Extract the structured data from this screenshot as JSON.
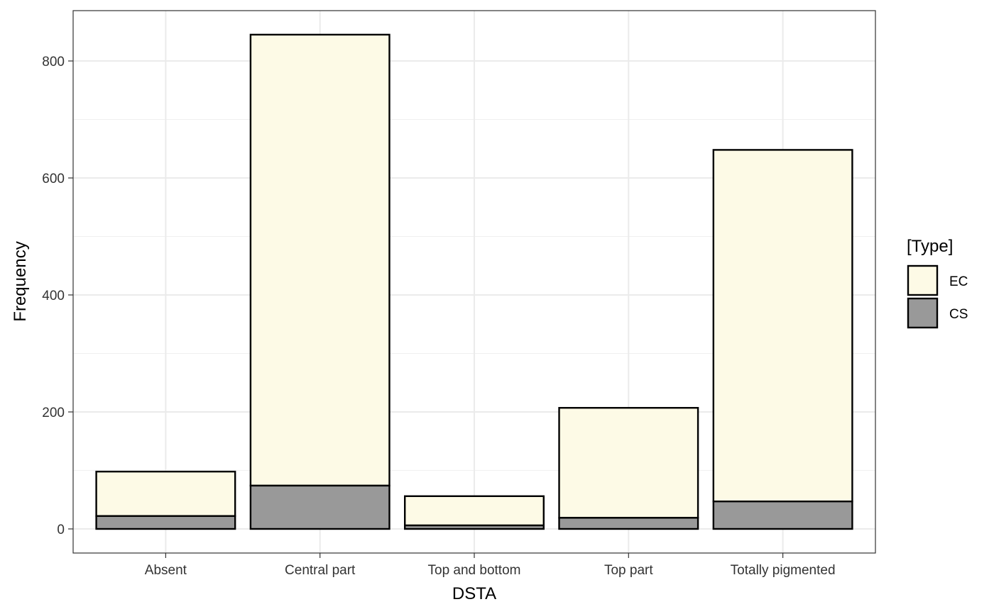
{
  "chart_data": {
    "type": "bar",
    "stacked": true,
    "title": "",
    "xlabel": "DSTA",
    "ylabel": "Frequency",
    "categories": [
      "Absent",
      "Central part",
      "Top and bottom",
      "Top part",
      "Totally pigmented"
    ],
    "series": [
      {
        "name": "CS",
        "color": "#999999",
        "values": [
          22,
          74,
          6,
          19,
          47
        ]
      },
      {
        "name": "EC",
        "color": "#fdfae6",
        "values": [
          76,
          771,
          50,
          188,
          601
        ]
      }
    ],
    "ylim": [
      0,
      880
    ],
    "yticks": [
      0,
      200,
      400,
      600,
      800
    ],
    "grid": true,
    "legend": {
      "title": "[Type]",
      "position": "right",
      "entries": [
        {
          "label": "EC",
          "color": "#fdfae6"
        },
        {
          "label": "CS",
          "color": "#999999"
        }
      ]
    }
  }
}
